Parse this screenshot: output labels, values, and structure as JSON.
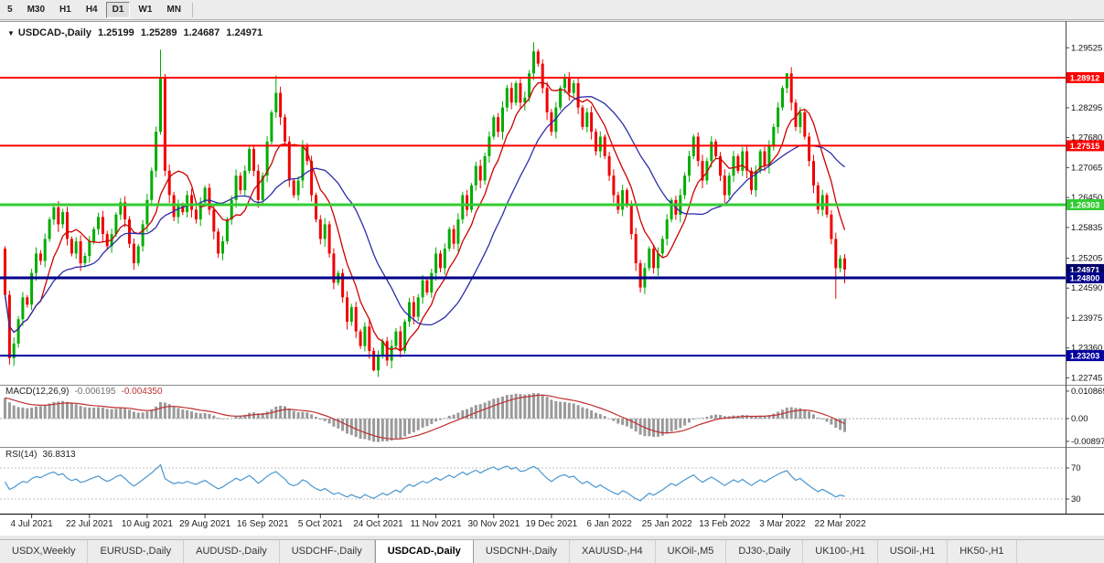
{
  "toolbar": {
    "timeframes": [
      {
        "label": "5",
        "active": false
      },
      {
        "label": "M30",
        "active": false
      },
      {
        "label": "H1",
        "active": false
      },
      {
        "label": "H4",
        "active": false
      },
      {
        "label": "D1",
        "active": true
      },
      {
        "label": "W1",
        "active": false
      },
      {
        "label": "MN",
        "active": false
      }
    ]
  },
  "icons": {
    "collapse": "▼"
  },
  "header": {
    "symbol": "USDCAD-,Daily",
    "open": "1.25199",
    "high": "1.25289",
    "low": "1.24687",
    "close": "1.24971"
  },
  "indicators": {
    "macd": {
      "name": "MACD(12,26,9)",
      "value_main": "-0.006195",
      "value_signal": "-0.004350"
    },
    "rsi": {
      "name": "RSI(14)",
      "value": "36.8313"
    }
  },
  "tabs": [
    {
      "label": "USDX,Weekly",
      "active": false
    },
    {
      "label": "EURUSD-,Daily",
      "active": false
    },
    {
      "label": "AUDUSD-,Daily",
      "active": false
    },
    {
      "label": "USDCHF-,Daily",
      "active": false
    },
    {
      "label": "USDCAD-,Daily",
      "active": true
    },
    {
      "label": "USDCNH-,Daily",
      "active": false
    },
    {
      "label": "XAUUSD-,H4",
      "active": false
    },
    {
      "label": "UKOil-,M5",
      "active": false
    },
    {
      "label": "DJ30-,Daily",
      "active": false
    },
    {
      "label": "UK100-,H1",
      "active": false
    },
    {
      "label": "USOil-,H1",
      "active": false
    },
    {
      "label": "HK50-,H1",
      "active": false
    }
  ],
  "chart_data": {
    "type": "candlestick",
    "symbol": "USDCAD-",
    "timeframe": "Daily",
    "first_open": 1.254,
    "closes": [
      1.2445,
      1.2315,
      1.2345,
      1.2395,
      1.244,
      1.2425,
      1.249,
      1.253,
      1.2515,
      1.256,
      1.26,
      1.2625,
      1.259,
      1.2615,
      1.256,
      1.253,
      1.2555,
      1.251,
      1.2525,
      1.2555,
      1.258,
      1.2605,
      1.257,
      1.2545,
      1.257,
      1.261,
      1.2635,
      1.26,
      1.255,
      1.251,
      1.2545,
      1.259,
      1.264,
      1.27,
      1.278,
      1.289,
      1.27,
      1.265,
      1.2605,
      1.263,
      1.2615,
      1.265,
      1.262,
      1.26,
      1.2635,
      1.2665,
      1.262,
      1.2575,
      1.253,
      1.2555,
      1.26,
      1.264,
      1.269,
      1.266,
      1.27,
      1.2745,
      1.27,
      1.264,
      1.269,
      1.276,
      1.282,
      1.286,
      1.281,
      1.276,
      1.268,
      1.265,
      1.268,
      1.275,
      1.272,
      1.265,
      1.26,
      1.256,
      1.259,
      1.253,
      1.247,
      1.249,
      1.244,
      1.239,
      1.242,
      1.237,
      1.234,
      1.238,
      1.233,
      1.229,
      1.232,
      1.235,
      1.231,
      1.234,
      1.237,
      1.233,
      1.239,
      1.243,
      1.24,
      1.244,
      1.2475,
      1.245,
      1.249,
      1.253,
      1.25,
      1.254,
      1.258,
      1.255,
      1.26,
      1.265,
      1.262,
      1.267,
      1.271,
      1.268,
      1.273,
      1.277,
      1.281,
      1.278,
      1.283,
      1.287,
      1.284,
      1.288,
      1.284,
      1.285,
      1.29,
      1.2945,
      1.292,
      1.287,
      1.282,
      1.278,
      1.283,
      1.287,
      1.289,
      1.286,
      1.288,
      1.283,
      1.279,
      1.282,
      1.278,
      1.274,
      1.277,
      1.273,
      1.269,
      1.265,
      1.262,
      1.266,
      1.263,
      1.257,
      1.251,
      1.246,
      1.25,
      1.254,
      1.25,
      1.253,
      1.256,
      1.26,
      1.264,
      1.261,
      1.265,
      1.269,
      1.273,
      1.277,
      1.272,
      1.268,
      1.272,
      1.276,
      1.273,
      1.269,
      1.265,
      1.269,
      1.273,
      1.27,
      1.274,
      1.27,
      1.266,
      1.27,
      1.274,
      1.271,
      1.275,
      1.279,
      1.283,
      1.287,
      1.29,
      1.284,
      1.279,
      1.282,
      1.277,
      1.272,
      1.267,
      1.262,
      1.265,
      1.261,
      1.256,
      1.25,
      1.252,
      1.2497
    ],
    "candle_overrides": {
      "0": {
        "o": 1.254,
        "l": 1.2438
      },
      "1": {
        "l": 1.2302
      },
      "35": {
        "h": 1.2949
      },
      "61": {
        "h": 1.2896
      },
      "83": {
        "l": 1.2288
      },
      "119": {
        "h": 1.2964
      },
      "143": {
        "l": 1.245
      },
      "176": {
        "h": 1.2901
      },
      "187": {
        "l": 1.2437
      },
      "189": {
        "o": 1.25199,
        "h": 1.25289,
        "l": 1.24687,
        "c": 1.24971
      }
    },
    "ma_overlays": [
      {
        "type": "sma",
        "period": 8,
        "color": "#cc0000"
      },
      {
        "type": "sma",
        "period": 21,
        "color": "#2d2da8"
      }
    ],
    "hlines": [
      {
        "price": 1.28912,
        "label": "1.28912",
        "color": "#ff0000",
        "width": 2
      },
      {
        "price": 1.27515,
        "label": "1.27515",
        "color": "#ff0000",
        "width": 2
      },
      {
        "price": 1.26303,
        "label": "1.26303",
        "color": "#33cc33",
        "width": 3
      },
      {
        "price": 1.248,
        "label": "1.24800",
        "color": "#000089",
        "width": 3
      },
      {
        "price": 1.23203,
        "label": "1.23203",
        "color": "#0000a0",
        "width": 2
      }
    ],
    "price_marker": {
      "price": 1.24971,
      "label": "1.24971",
      "color": "#00006b"
    },
    "price_axis_labels": [
      "1.29525",
      "1.28295",
      "1.27680",
      "1.27065",
      "1.26450",
      "1.25835",
      "1.25205",
      "1.24590",
      "1.23975",
      "1.23360",
      "1.22745"
    ],
    "date_labels": [
      "4 Jul 2021",
      "22 Jul 2021",
      "10 Aug 2021",
      "29 Aug 2021",
      "16 Sep 2021",
      "5 Oct 2021",
      "24 Oct 2021",
      "11 Nov 2021",
      "30 Nov 2021",
      "19 Dec 2021",
      "6 Jan 2022",
      "25 Jan 2022",
      "13 Feb 2022",
      "3 Mar 2022",
      "22 Mar 2022"
    ],
    "date_first_bar": 6,
    "date_step": 13,
    "macd": {
      "fast": 12,
      "slow": 26,
      "signal": 9,
      "seed": [
        0.002,
        -0.007
      ],
      "axis_labels": [
        {
          "text": "0.010869",
          "value": 0.010869
        },
        {
          "text": "0.00",
          "value": 0
        },
        {
          "text": "-0.008974",
          "value": -0.008974
        }
      ],
      "hist_color": "#9a9a9a",
      "signal_color": "#c03030"
    },
    "rsi": {
      "period": 14,
      "levels": [
        70,
        30
      ],
      "color": "#4a97cf"
    },
    "ylim_main": [
      1.2262,
      1.3006
    ],
    "colors": {
      "bull": "#00ad00",
      "bear": "#f00000",
      "background": "#ffffff",
      "axis_text": "#111111"
    }
  }
}
